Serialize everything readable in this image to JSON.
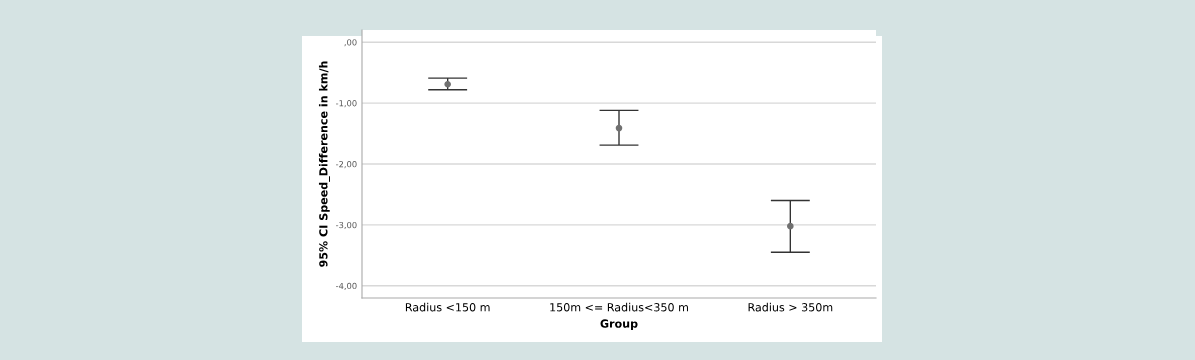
{
  "chart_data": {
    "type": "scatter",
    "xlabel": "Group",
    "ylabel": "95% CI Speed_Difference in km/h",
    "categories": [
      "Radius <150 m",
      "150m <= Radius<350 m",
      "Radius > 350m"
    ],
    "values": [
      -0.69,
      -1.41,
      -3.02
    ],
    "errors": [
      [
        -0.78,
        -0.59
      ],
      [
        -1.69,
        -1.12
      ],
      [
        -3.45,
        -2.6
      ]
    ],
    "color": "#707070",
    "marker": "circle",
    "ylim": [
      -4.2,
      0.2
    ],
    "yticks": [
      {
        "value": 0,
        "label": ",00"
      },
      {
        "value": -1,
        "label": "-1,00"
      },
      {
        "value": -2,
        "label": "-2,00"
      },
      {
        "value": -3,
        "label": "-3,00"
      },
      {
        "value": -4,
        "label": "-4,00"
      }
    ],
    "grid": "y"
  }
}
